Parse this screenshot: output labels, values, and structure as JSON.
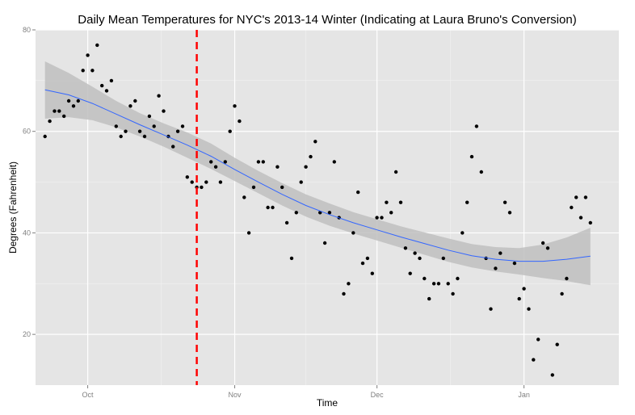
{
  "chart_data": {
    "type": "scatter",
    "title": "Daily Mean Temperatures for NYC's 2013-14 Winter (Indicating at Laura Bruno's Conversion)",
    "xlabel": "Time",
    "ylabel": "Degrees (Fahrenheit)",
    "x_ticks": [
      {
        "label": "Oct",
        "date": "2013-10-01"
      },
      {
        "label": "Nov",
        "date": "2013-11-01"
      },
      {
        "label": "Dec",
        "date": "2013-12-01"
      },
      {
        "label": "Jan",
        "date": "2014-01-01"
      }
    ],
    "y_ticks": [
      20,
      40,
      60,
      80
    ],
    "xlim": [
      "2013-09-20",
      "2014-01-21"
    ],
    "ylim": [
      10,
      80
    ],
    "grid": true,
    "background_color": "#e5e5e5",
    "point_color": "#000000",
    "smooth_color": "#3366ff",
    "band_color": "#bfbfbf",
    "vline_color": "#ff0000",
    "vline_date": "2013-10-24",
    "series": [
      {
        "type": "points",
        "points": [
          {
            "x": "2013-09-22",
            "y": 59
          },
          {
            "x": "2013-09-23",
            "y": 62
          },
          {
            "x": "2013-09-24",
            "y": 64
          },
          {
            "x": "2013-09-25",
            "y": 64
          },
          {
            "x": "2013-09-26",
            "y": 63
          },
          {
            "x": "2013-09-27",
            "y": 66
          },
          {
            "x": "2013-09-28",
            "y": 65
          },
          {
            "x": "2013-09-29",
            "y": 66
          },
          {
            "x": "2013-09-30",
            "y": 72
          },
          {
            "x": "2013-10-01",
            "y": 75
          },
          {
            "x": "2013-10-02",
            "y": 72
          },
          {
            "x": "2013-10-03",
            "y": 77
          },
          {
            "x": "2013-10-04",
            "y": 69
          },
          {
            "x": "2013-10-05",
            "y": 68
          },
          {
            "x": "2013-10-06",
            "y": 70
          },
          {
            "x": "2013-10-07",
            "y": 61
          },
          {
            "x": "2013-10-08",
            "y": 59
          },
          {
            "x": "2013-10-09",
            "y": 60
          },
          {
            "x": "2013-10-10",
            "y": 65
          },
          {
            "x": "2013-10-11",
            "y": 66
          },
          {
            "x": "2013-10-12",
            "y": 60
          },
          {
            "x": "2013-10-13",
            "y": 59
          },
          {
            "x": "2013-10-14",
            "y": 63
          },
          {
            "x": "2013-10-15",
            "y": 61
          },
          {
            "x": "2013-10-16",
            "y": 67
          },
          {
            "x": "2013-10-17",
            "y": 64
          },
          {
            "x": "2013-10-18",
            "y": 59
          },
          {
            "x": "2013-10-19",
            "y": 57
          },
          {
            "x": "2013-10-20",
            "y": 60
          },
          {
            "x": "2013-10-21",
            "y": 61
          },
          {
            "x": "2013-10-22",
            "y": 51
          },
          {
            "x": "2013-10-23",
            "y": 50
          },
          {
            "x": "2013-10-24",
            "y": 49
          },
          {
            "x": "2013-10-25",
            "y": 49
          },
          {
            "x": "2013-10-26",
            "y": 50
          },
          {
            "x": "2013-10-27",
            "y": 54
          },
          {
            "x": "2013-10-28",
            "y": 53
          },
          {
            "x": "2013-10-29",
            "y": 50
          },
          {
            "x": "2013-10-30",
            "y": 54
          },
          {
            "x": "2013-10-31",
            "y": 60
          },
          {
            "x": "2013-11-01",
            "y": 65
          },
          {
            "x": "2013-11-02",
            "y": 62
          },
          {
            "x": "2013-11-03",
            "y": 47
          },
          {
            "x": "2013-11-04",
            "y": 40
          },
          {
            "x": "2013-11-05",
            "y": 49
          },
          {
            "x": "2013-11-06",
            "y": 54
          },
          {
            "x": "2013-11-07",
            "y": 54
          },
          {
            "x": "2013-11-08",
            "y": 45
          },
          {
            "x": "2013-11-09",
            "y": 45
          },
          {
            "x": "2013-11-10",
            "y": 53
          },
          {
            "x": "2013-11-11",
            "y": 49
          },
          {
            "x": "2013-11-12",
            "y": 42
          },
          {
            "x": "2013-11-13",
            "y": 35
          },
          {
            "x": "2013-11-14",
            "y": 44
          },
          {
            "x": "2013-11-15",
            "y": 50
          },
          {
            "x": "2013-11-16",
            "y": 53
          },
          {
            "x": "2013-11-17",
            "y": 55
          },
          {
            "x": "2013-11-18",
            "y": 58
          },
          {
            "x": "2013-11-19",
            "y": 44
          },
          {
            "x": "2013-11-20",
            "y": 38
          },
          {
            "x": "2013-11-21",
            "y": 44
          },
          {
            "x": "2013-11-22",
            "y": 54
          },
          {
            "x": "2013-11-23",
            "y": 43
          },
          {
            "x": "2013-11-24",
            "y": 28
          },
          {
            "x": "2013-11-25",
            "y": 30
          },
          {
            "x": "2013-11-26",
            "y": 40
          },
          {
            "x": "2013-11-27",
            "y": 48
          },
          {
            "x": "2013-11-28",
            "y": 34
          },
          {
            "x": "2013-11-29",
            "y": 35
          },
          {
            "x": "2013-11-30",
            "y": 32
          },
          {
            "x": "2013-12-01",
            "y": 43
          },
          {
            "x": "2013-12-02",
            "y": 43
          },
          {
            "x": "2013-12-03",
            "y": 46
          },
          {
            "x": "2013-12-04",
            "y": 44
          },
          {
            "x": "2013-12-05",
            "y": 52
          },
          {
            "x": "2013-12-06",
            "y": 46
          },
          {
            "x": "2013-12-07",
            "y": 37
          },
          {
            "x": "2013-12-08",
            "y": 32
          },
          {
            "x": "2013-12-09",
            "y": 36
          },
          {
            "x": "2013-12-10",
            "y": 35
          },
          {
            "x": "2013-12-11",
            "y": 31
          },
          {
            "x": "2013-12-12",
            "y": 27
          },
          {
            "x": "2013-12-13",
            "y": 30
          },
          {
            "x": "2013-12-14",
            "y": 30
          },
          {
            "x": "2013-12-15",
            "y": 35
          },
          {
            "x": "2013-12-16",
            "y": 30
          },
          {
            "x": "2013-12-17",
            "y": 28
          },
          {
            "x": "2013-12-18",
            "y": 31
          },
          {
            "x": "2013-12-19",
            "y": 40
          },
          {
            "x": "2013-12-20",
            "y": 46
          },
          {
            "x": "2013-12-21",
            "y": 55
          },
          {
            "x": "2013-12-22",
            "y": 61
          },
          {
            "x": "2013-12-23",
            "y": 52
          },
          {
            "x": "2013-12-24",
            "y": 35
          },
          {
            "x": "2013-12-25",
            "y": 25
          },
          {
            "x": "2013-12-26",
            "y": 33
          },
          {
            "x": "2013-12-27",
            "y": 36
          },
          {
            "x": "2013-12-28",
            "y": 46
          },
          {
            "x": "2013-12-29",
            "y": 44
          },
          {
            "x": "2013-12-30",
            "y": 34
          },
          {
            "x": "2013-12-31",
            "y": 27
          },
          {
            "x": "2014-01-01",
            "y": 29
          },
          {
            "x": "2014-01-02",
            "y": 25
          },
          {
            "x": "2014-01-03",
            "y": 15
          },
          {
            "x": "2014-01-04",
            "y": 19
          },
          {
            "x": "2014-01-05",
            "y": 38
          },
          {
            "x": "2014-01-06",
            "y": 37
          },
          {
            "x": "2014-01-07",
            "y": 12
          },
          {
            "x": "2014-01-08",
            "y": 18
          },
          {
            "x": "2014-01-09",
            "y": 28
          },
          {
            "x": "2014-01-10",
            "y": 31
          },
          {
            "x": "2014-01-11",
            "y": 45
          },
          {
            "x": "2014-01-12",
            "y": 47
          },
          {
            "x": "2014-01-13",
            "y": 43
          },
          {
            "x": "2014-01-14",
            "y": 47
          },
          {
            "x": "2014-01-15",
            "y": 42
          }
        ]
      },
      {
        "type": "smooth",
        "points": [
          {
            "x": "2013-09-22",
            "y": 68.2,
            "lo": 62.5,
            "hi": 73.8
          },
          {
            "x": "2013-09-27",
            "y": 67.2,
            "lo": 62.8,
            "hi": 71.5
          },
          {
            "x": "2013-10-02",
            "y": 65.5,
            "lo": 62.2,
            "hi": 68.8
          },
          {
            "x": "2013-10-07",
            "y": 63.4,
            "lo": 60.8,
            "hi": 66.0
          },
          {
            "x": "2013-10-12",
            "y": 61.3,
            "lo": 59.0,
            "hi": 63.6
          },
          {
            "x": "2013-10-17",
            "y": 59.3,
            "lo": 57.0,
            "hi": 61.6
          },
          {
            "x": "2013-10-22",
            "y": 57.3,
            "lo": 54.8,
            "hi": 59.8
          },
          {
            "x": "2013-10-27",
            "y": 55.1,
            "lo": 52.6,
            "hi": 57.6
          },
          {
            "x": "2013-11-01",
            "y": 52.5,
            "lo": 50.2,
            "hi": 54.8
          },
          {
            "x": "2013-11-06",
            "y": 50.0,
            "lo": 47.8,
            "hi": 52.2
          },
          {
            "x": "2013-11-11",
            "y": 47.6,
            "lo": 45.4,
            "hi": 49.8
          },
          {
            "x": "2013-11-16",
            "y": 45.4,
            "lo": 43.2,
            "hi": 47.6
          },
          {
            "x": "2013-11-21",
            "y": 43.6,
            "lo": 41.4,
            "hi": 45.8
          },
          {
            "x": "2013-11-26",
            "y": 42.0,
            "lo": 39.9,
            "hi": 44.1
          },
          {
            "x": "2013-12-01",
            "y": 40.6,
            "lo": 38.5,
            "hi": 42.7
          },
          {
            "x": "2013-12-06",
            "y": 39.2,
            "lo": 37.1,
            "hi": 41.3
          },
          {
            "x": "2013-12-11",
            "y": 37.9,
            "lo": 35.7,
            "hi": 40.1
          },
          {
            "x": "2013-12-16",
            "y": 36.6,
            "lo": 34.3,
            "hi": 38.9
          },
          {
            "x": "2013-12-21",
            "y": 35.5,
            "lo": 33.2,
            "hi": 37.8
          },
          {
            "x": "2013-12-26",
            "y": 34.8,
            "lo": 32.4,
            "hi": 37.2
          },
          {
            "x": "2013-12-31",
            "y": 34.4,
            "lo": 31.8,
            "hi": 37.0
          },
          {
            "x": "2014-01-05",
            "y": 34.4,
            "lo": 31.1,
            "hi": 37.7
          },
          {
            "x": "2014-01-10",
            "y": 34.8,
            "lo": 30.5,
            "hi": 39.1
          },
          {
            "x": "2014-01-15",
            "y": 35.4,
            "lo": 29.7,
            "hi": 41.0
          }
        ]
      }
    ]
  }
}
